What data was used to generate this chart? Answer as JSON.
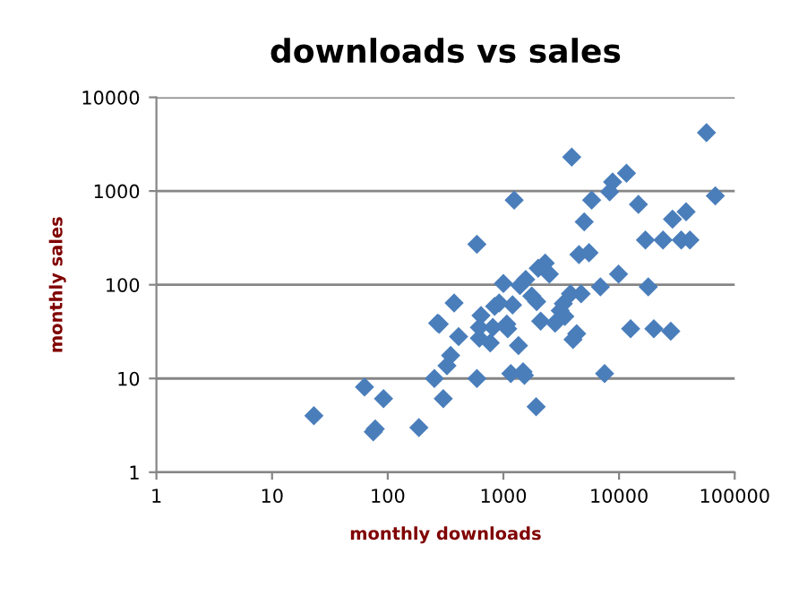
{
  "chart_data": {
    "type": "scatter",
    "title": "downloads vs sales",
    "xlabel": "monthly downloads",
    "ylabel": "monthly sales",
    "log": "xy",
    "xlim": [
      1,
      100000
    ],
    "ylim": [
      1,
      10000
    ],
    "xticks": [
      1,
      10,
      100,
      1000,
      10000,
      100000
    ],
    "yticks": [
      1,
      10,
      100,
      1000,
      10000
    ],
    "grid": "y",
    "marker": "diamond",
    "series": [
      {
        "color": "#4a7ebb",
        "x": [
          23,
          63,
          92,
          78,
          75,
          186,
          279,
          253,
          302,
          57000,
          68000,
          3900,
          11600,
          8800,
          8300,
          5800,
          1240,
          14700,
          5000,
          29000,
          38000,
          16900,
          24000,
          34500,
          41000,
          590,
          4500,
          5500,
          2300,
          2000,
          2500,
          9900,
          1560,
          1000,
          1390,
          6900,
          17900,
          1760,
          4700,
          3800,
          1940,
          920,
          1200,
          840,
          375,
          3300,
          3100,
          640,
          3400,
          2100,
          2900,
          270,
          1070,
          810,
          620,
          1090,
          12600,
          20000,
          28000,
          410,
          620,
          770,
          1350,
          4300,
          4000,
          350,
          325,
          590,
          1160,
          1480,
          1520,
          7500,
          1920,
          2800
        ],
        "values": [
          4.0,
          8.1,
          6.1,
          2.9,
          2.7,
          3.0,
          38,
          10,
          6.1,
          4200,
          890,
          2300,
          1550,
          1250,
          980,
          800,
          800,
          720,
          470,
          500,
          600,
          300,
          300,
          300,
          300,
          270,
          210,
          220,
          170,
          150,
          130,
          130,
          114,
          103,
          98,
          95,
          95,
          76,
          80,
          80,
          66,
          64,
          61,
          59,
          64,
          63,
          53,
          47,
          46,
          41,
          41,
          39,
          38,
          35,
          35,
          34,
          34,
          34,
          32,
          28,
          27,
          24,
          22.5,
          30,
          26,
          17.6,
          13.7,
          10,
          11.3,
          11.8,
          10.8,
          11.3,
          5.0,
          39
        ]
      }
    ]
  }
}
